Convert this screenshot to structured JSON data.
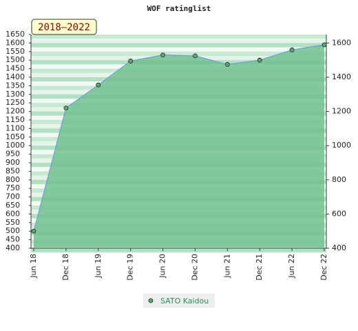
{
  "chart_data": {
    "type": "area",
    "title": "WOF ratinglist",
    "annotation": "2018–2022",
    "categories": [
      "Jun 18",
      "Dec 18",
      "Jun 19",
      "Dec 19",
      "Jun 20",
      "Dec 20",
      "Jun 21",
      "Dec 21",
      "Jun 22",
      "Dec 22"
    ],
    "series": [
      {
        "name": "SATO Kaidou",
        "color": "#6fa0d8",
        "marker_color": "#5aa873",
        "fill": "#72c08f",
        "values": [
          500,
          1220,
          1355,
          1495,
          1530,
          1525,
          1475,
          1500,
          1560,
          1590
        ]
      }
    ],
    "ylim": [
      400,
      1650
    ],
    "yticks": [
      400,
      450,
      500,
      550,
      600,
      650,
      700,
      750,
      800,
      850,
      900,
      950,
      1000,
      1050,
      1100,
      1150,
      1200,
      1250,
      1300,
      1350,
      1400,
      1450,
      1500,
      1550,
      1600,
      1650
    ],
    "y2lim": [
      400,
      1650
    ],
    "y2ticks": [
      400,
      600,
      800,
      1000,
      1200,
      1400,
      1600
    ]
  }
}
